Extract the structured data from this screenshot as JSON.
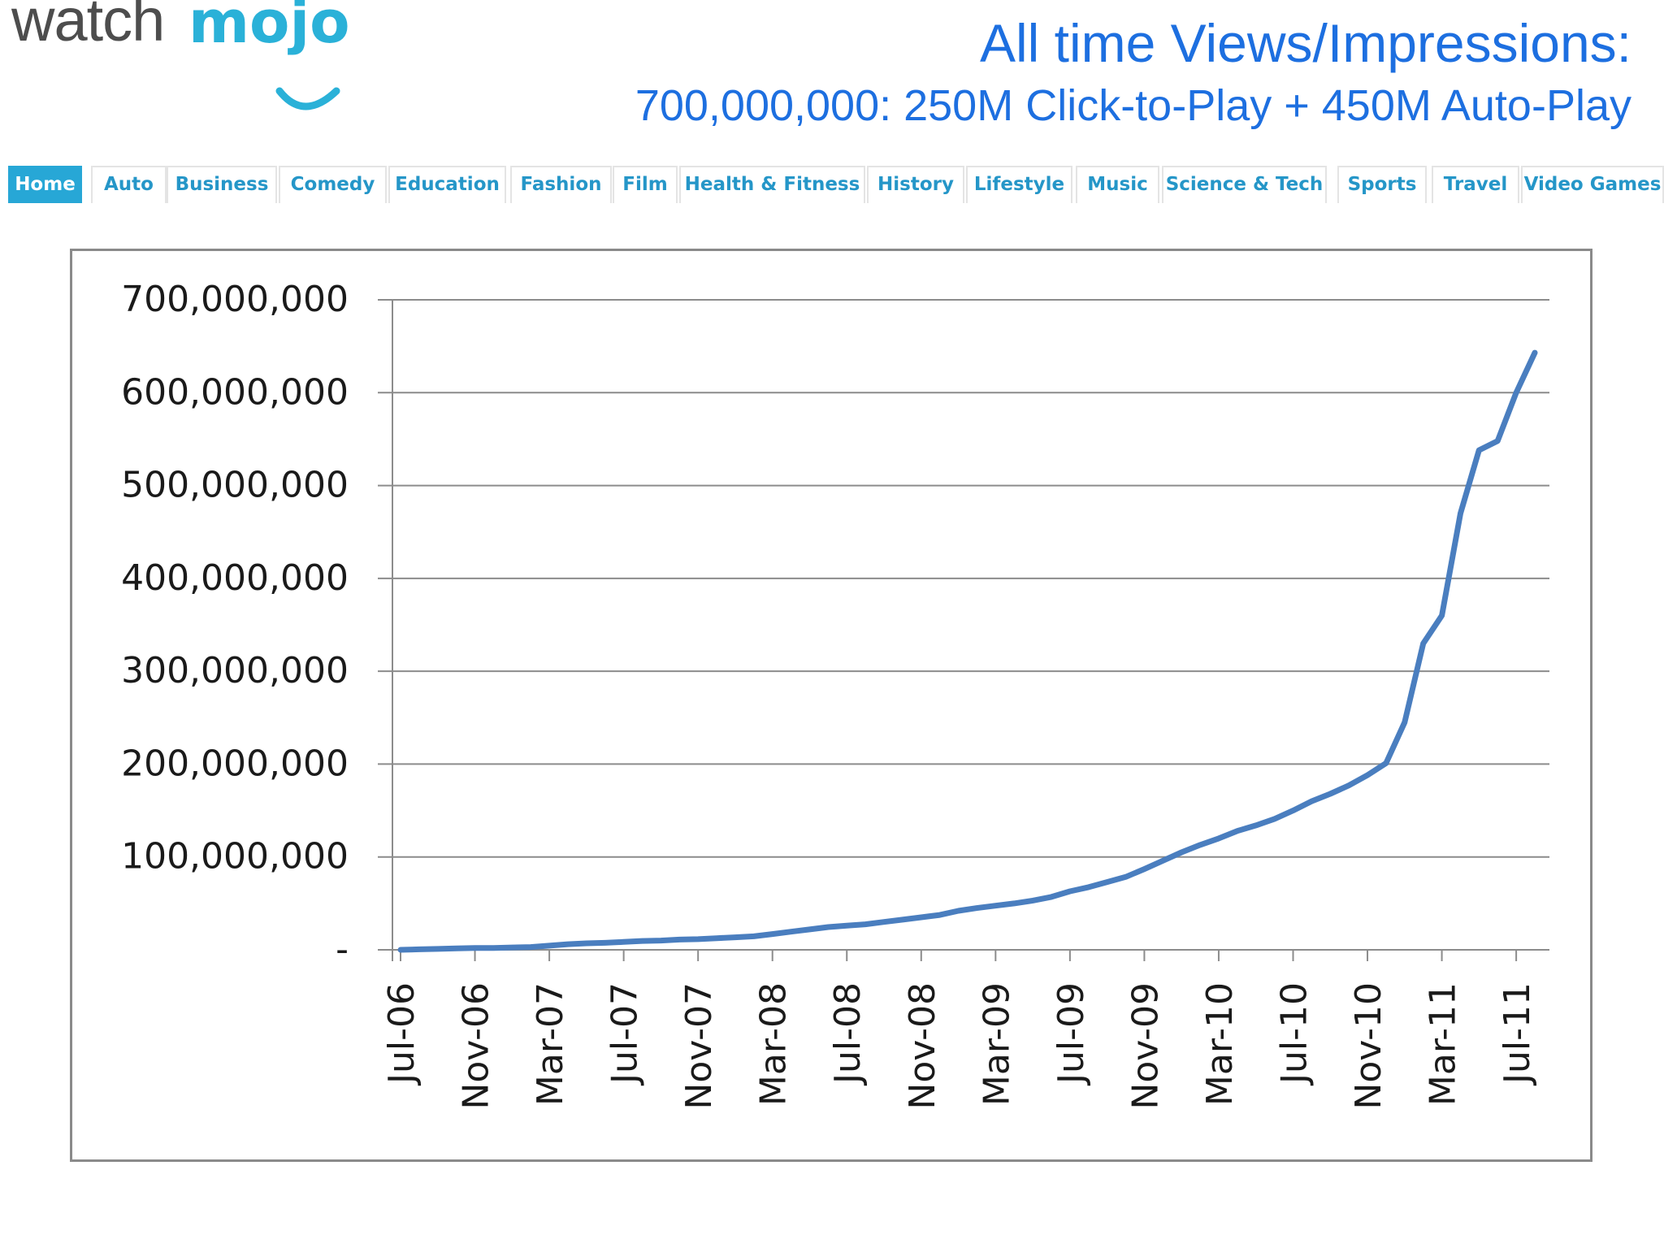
{
  "brand": {
    "logo_text_1": "watch",
    "logo_text_2": "mojo",
    "logo_color_dark": "#4d4d4d",
    "logo_color_accent": "#2ab1d8"
  },
  "headline": {
    "title": "All time Views/Impressions:",
    "subtitle": "700,000,000: 250M Click-to-Play + 450M Auto-Play",
    "color": "#1d6fe0"
  },
  "nav": {
    "tabs": [
      {
        "label": "Home",
        "active": true
      },
      {
        "label": "Auto"
      },
      {
        "label": "Business"
      },
      {
        "label": "Comedy"
      },
      {
        "label": "Education"
      },
      {
        "label": "Fashion"
      },
      {
        "label": "Film"
      },
      {
        "label": "Health & Fitness"
      },
      {
        "label": "History"
      },
      {
        "label": "Lifestyle"
      },
      {
        "label": "Music"
      },
      {
        "label": "Science & Tech"
      },
      {
        "label": "Sports"
      },
      {
        "label": "Travel"
      },
      {
        "label": "Video Games"
      }
    ],
    "accent": "#27a7d6",
    "text_color": "#2596c8"
  },
  "chart_data": {
    "type": "line",
    "title": "",
    "xlabel": "",
    "ylabel": "",
    "ylim": [
      0,
      700000000
    ],
    "yticks": [
      0,
      100000000,
      200000000,
      300000000,
      400000000,
      500000000,
      600000000,
      700000000
    ],
    "ytick_labels": [
      "-",
      "100,000,000",
      "200,000,000",
      "300,000,000",
      "400,000,000",
      "500,000,000",
      "600,000,000",
      "700,000,000"
    ],
    "xtick_labels": [
      "Jul-06",
      "Nov-06",
      "Mar-07",
      "Jul-07",
      "Nov-07",
      "Mar-08",
      "Jul-08",
      "Nov-08",
      "Mar-09",
      "Jul-09",
      "Nov-09",
      "Mar-10",
      "Jul-10",
      "Nov-10",
      "Mar-11",
      "Jul-11"
    ],
    "grid": true,
    "line_color": "#4a7ebf",
    "series": [
      {
        "x": [
          "Jul-06",
          "Aug-06",
          "Sep-06",
          "Oct-06",
          "Nov-06",
          "Dec-06",
          "Jan-07",
          "Feb-07",
          "Mar-07",
          "Apr-07",
          "May-07",
          "Jun-07",
          "Jul-07",
          "Aug-07",
          "Sep-07",
          "Oct-07",
          "Nov-07",
          "Dec-07",
          "Jan-08",
          "Feb-08",
          "Mar-08",
          "Apr-08",
          "May-08",
          "Jun-08",
          "Jul-08",
          "Aug-08",
          "Sep-08",
          "Oct-08",
          "Nov-08",
          "Dec-08",
          "Jan-09",
          "Feb-09",
          "Mar-09",
          "Apr-09",
          "May-09",
          "Jun-09",
          "Jul-09",
          "Aug-09",
          "Sep-09",
          "Oct-09",
          "Nov-09",
          "Dec-09",
          "Jan-10",
          "Feb-10",
          "Mar-10",
          "Apr-10",
          "May-10",
          "Jun-10",
          "Jul-10",
          "Aug-10",
          "Sep-10",
          "Oct-10",
          "Nov-10",
          "Dec-10",
          "Jan-11",
          "Feb-11",
          "Mar-11",
          "Apr-11",
          "May-11",
          "Jun-11",
          "Jul-11",
          "Aug-11"
        ],
        "values": [
          0,
          500000,
          1000000,
          1500000,
          2000000,
          2000000,
          2500000,
          3000000,
          4500000,
          6000000,
          7000000,
          7500000,
          8500000,
          9500000,
          10000000,
          11000000,
          11500000,
          12500000,
          13500000,
          14500000,
          17000000,
          19500000,
          22000000,
          24500000,
          26000000,
          27500000,
          30000000,
          32500000,
          35000000,
          37500000,
          42000000,
          45000000,
          47500000,
          50000000,
          53000000,
          57000000,
          63000000,
          67500000,
          73000000,
          78500000,
          87000000,
          96000000,
          105000000,
          113000000,
          120000000,
          128000000,
          134000000,
          141000000,
          150000000,
          160000000,
          168000000,
          177000000,
          188000000,
          201000000,
          245000000,
          330000000,
          360000000,
          470000000,
          538000000,
          548000000,
          600000000,
          643000000
        ]
      }
    ]
  }
}
